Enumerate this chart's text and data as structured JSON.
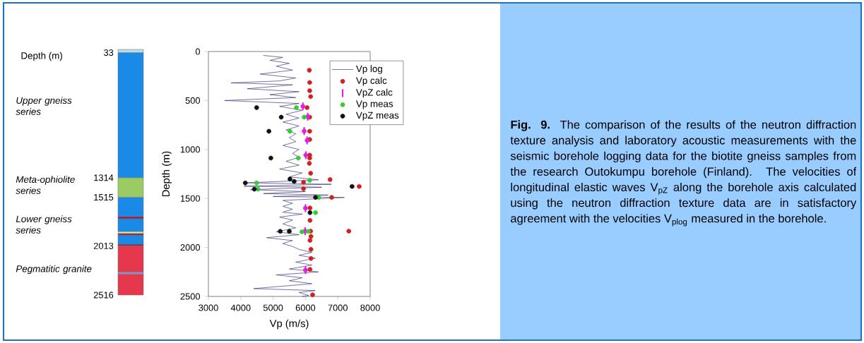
{
  "chart_data": [
    {
      "type": "bar",
      "stacked": true,
      "categories": [
        null
      ],
      "ylabel": "Depth (m)",
      "ylim": [
        2516,
        0
      ],
      "yticks": [
        33,
        1314,
        1515,
        2013,
        2516
      ],
      "series": [
        {
          "color": "#b4dce4",
          "values": [
            33
          ]
        },
        {
          "color": "#1a8ae8",
          "values": [
            1281
          ]
        },
        {
          "color": "#9acb64",
          "values": [
            201
          ]
        },
        {
          "color": "#1a8ae8",
          "values": [
            195
          ]
        },
        {
          "color": "#8a2a5c",
          "values": [
            25
          ]
        },
        {
          "color": "#1a8ae8",
          "values": [
            130
          ]
        },
        {
          "color": "#c8f0a0",
          "values": [
            20
          ]
        },
        {
          "color": "#8a2a5c",
          "values": [
            20
          ]
        },
        {
          "color": "#1a8ae8",
          "values": [
            90
          ]
        },
        {
          "color": "#8a2a5c",
          "values": [
            18
          ]
        },
        {
          "color": "#e6384c",
          "values": [
            267
          ]
        },
        {
          "color": "#9a8ad8",
          "values": [
            20
          ]
        },
        {
          "color": "#e6384c",
          "values": [
            216
          ]
        }
      ],
      "annotations": [
        "*Upper gneiss series*",
        "*Meta-ophiolite series*",
        "*Lower gneiss series*",
        "*Pegmatitic granite*"
      ]
    },
    {
      "type": "scatter",
      "xlabel": "Vp (m/s)",
      "ylabel": "Depth (m)",
      "xlim": [
        3000,
        8000
      ],
      "xticks": [
        3000,
        4000,
        5000,
        6000,
        7000,
        8000
      ],
      "ylim": [
        2500,
        0
      ],
      "yticks": [
        0,
        500,
        1000,
        1500,
        2000,
        2500
      ],
      "legend": "top right",
      "series": [
        {
          "name": "Vp log",
          "type": "line",
          "color": "#1c1c6c",
          "marker": "none",
          "x": [
            4700,
            5300,
            4900,
            5500,
            5100,
            5600,
            4600,
            5700,
            5200,
            3700,
            5600,
            4200,
            5800,
            4900,
            5700,
            3500,
            5800,
            5200,
            5900,
            5400,
            5800,
            5300,
            5800,
            5400,
            5700,
            5500,
            5700,
            5300,
            5800,
            5600,
            5800,
            5400,
            5800,
            5200,
            5900,
            5500,
            6400,
            4200,
            6800,
            4100,
            6500,
            4300,
            6000,
            4700,
            6700,
            5000,
            7200,
            5300,
            5600,
            5300,
            5600,
            5300,
            5900,
            5200,
            5600,
            5300,
            5700,
            5100,
            5800,
            4800,
            5600,
            5300,
            5600,
            5800,
            6200,
            5800,
            6300,
            5700,
            6200,
            5500,
            6400,
            5100,
            5900,
            5500,
            6200,
            4400,
            6300,
            5800,
            6100,
            5900
          ],
          "values": [
            40,
            60,
            90,
            120,
            150,
            190,
            230,
            270,
            300,
            320,
            340,
            380,
            410,
            440,
            470,
            500,
            530,
            560,
            600,
            640,
            680,
            720,
            760,
            800,
            840,
            880,
            920,
            960,
            1000,
            1040,
            1080,
            1120,
            1160,
            1200,
            1240,
            1280,
            1310,
            1340,
            1355,
            1375,
            1385,
            1410,
            1430,
            1450,
            1465,
            1480,
            1490,
            1520,
            1550,
            1580,
            1610,
            1640,
            1660,
            1690,
            1720,
            1760,
            1800,
            1840,
            1870,
            1900,
            1930,
            1960,
            1990,
            2020,
            2050,
            2080,
            2110,
            2150,
            2180,
            2220,
            2250,
            2280,
            2310,
            2340,
            2370,
            2420,
            2440,
            2460,
            2490,
            2500
          ]
        },
        {
          "name": "Vp calc",
          "color": "#cc2222",
          "marker": "circle",
          "x": [
            6120,
            6130,
            6130,
            6160,
            6050,
            6130,
            6130,
            6130,
            6130,
            6130,
            6120,
            6160,
            6760,
            5940,
            7660,
            5940,
            6810,
            6140,
            6140,
            6160,
            7340,
            6170,
            6140,
            6170,
            6170,
            6140,
            6220
          ],
          "values": [
            191,
            316,
            400,
            460,
            572,
            670,
            814,
            898,
            1058,
            1087,
            1142,
            1243,
            1307,
            1334,
            1377,
            1401,
            1489,
            1597,
            1724,
            1834,
            1834,
            1887,
            1928,
            2019,
            2112,
            2224,
            2483
          ]
        },
        {
          "name": "VpZ calc",
          "color": "#e020e0",
          "marker": "none",
          "x": [
            5920,
            6070,
            5960,
            6050,
            6010,
            6000,
            5990,
            6000
          ],
          "values": [
            560,
            665,
            812,
            907,
            1058,
            1599,
            1834,
            2231
          ],
          "errors": [
            40,
            40,
            40,
            40,
            40,
            40,
            40,
            40
          ]
        },
        {
          "name": "Vp meas",
          "color": "#33cc33",
          "marker": "circle",
          "x": [
            5720,
            5960,
            5520,
            5780,
            6130,
            4490,
            4530,
            6410,
            6310,
            5890,
            6090
          ],
          "values": [
            572,
            670,
            814,
            1087,
            1315,
            1341,
            1405,
            1489,
            1645,
            1840,
            1836
          ]
        },
        {
          "name": "VpZ meas",
          "color": "#111111",
          "marker": "circle",
          "x": [
            4490,
            5250,
            4870,
            4930,
            5520,
            5650,
            4140,
            4420,
            7440,
            6310,
            6140,
            5220,
            5500
          ],
          "values": [
            572,
            670,
            814,
            1087,
            1302,
            1326,
            1341,
            1405,
            1377,
            1489,
            1645,
            1836,
            1836
          ]
        }
      ]
    },
    {
      "type": "other",
      "annotations": [
        "**Fig. 9.** The comparison of the results of the neutron diffraction texture analysis and laboratory acoustic measurements with the seismic borehole logging data for the biotite gneiss samples from the research Outokumpu borehole (Finland). The velocities of longitudinal elastic waves V$_{pZ}$ along the borehole axis calculated using the neutron diffraction texture data are in satisfactory agreement with the velocities V$_{plog}$ measured in the borehole."
      ]
    }
  ]
}
